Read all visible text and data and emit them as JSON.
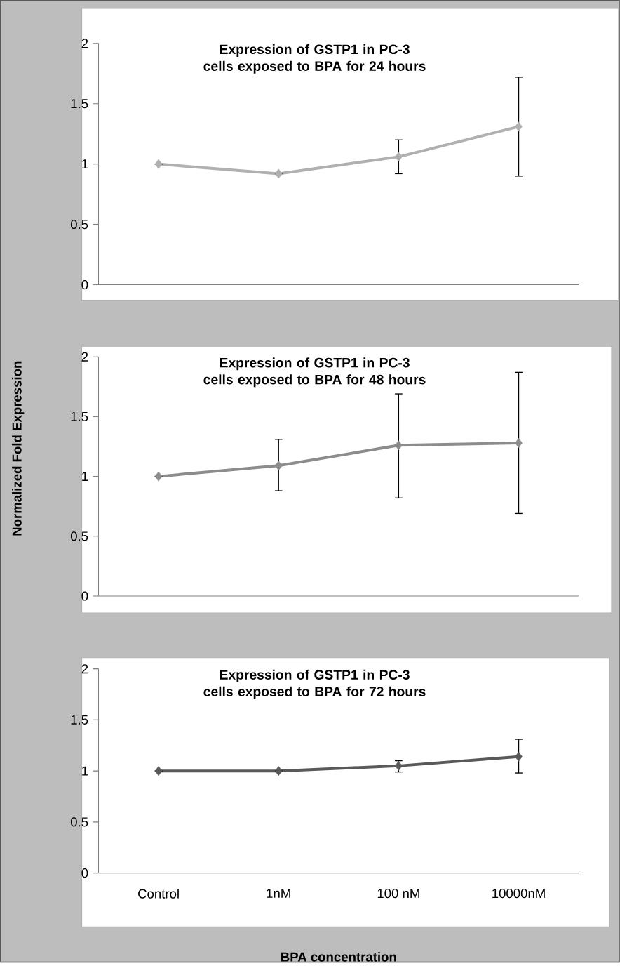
{
  "chart_data": [
    {
      "type": "line",
      "title": "Expression of GSTP1 in PC-3 cells exposed to BPA for 24 hours",
      "categories": [
        null,
        null,
        null,
        null
      ],
      "tick_labels": "y",
      "marker": "diamond",
      "ylim": [
        0,
        2
      ],
      "yticks": [
        0,
        0.5,
        1,
        1.5,
        2
      ],
      "series": [
        {
          "color": "#b0b0b0",
          "values": [
            1.0,
            0.92,
            1.06,
            1.31
          ],
          "errors": [
            null,
            null,
            [
              0.92,
              1.2
            ],
            [
              0.9,
              1.72
            ]
          ]
        }
      ]
    },
    {
      "type": "line",
      "title": "Expression of GSTP1 in PC-3 cells exposed to BPA for 48 hours",
      "ylabel": "Normalized Fold Expression",
      "categories": [
        null,
        null,
        null,
        null
      ],
      "tick_labels": "y",
      "marker": "diamond",
      "ylim": [
        0,
        2
      ],
      "yticks": [
        0,
        0.5,
        1,
        1.5,
        2
      ],
      "series": [
        {
          "color": "#8c8c8c",
          "values": [
            1.0,
            1.09,
            1.26,
            1.28
          ],
          "errors": [
            null,
            [
              0.88,
              1.31
            ],
            [
              0.82,
              1.69
            ],
            [
              0.69,
              1.87
            ]
          ]
        }
      ]
    },
    {
      "type": "line",
      "title": "Expression of GSTP1 in PC-3 cells exposed to BPA for 72 hours",
      "xlabel": "BPA concentration",
      "categories": [
        "Control",
        "1nM",
        "100 nM",
        "10000nM"
      ],
      "marker": "diamond",
      "ylim": [
        0,
        2
      ],
      "yticks": [
        0,
        0.5,
        1,
        1.5,
        2
      ],
      "series": [
        {
          "color": "#595959",
          "values": [
            1.0,
            1.0,
            1.05,
            1.14
          ],
          "errors": [
            null,
            null,
            [
              0.99,
              1.1
            ],
            [
              0.98,
              1.31
            ]
          ]
        }
      ]
    }
  ]
}
